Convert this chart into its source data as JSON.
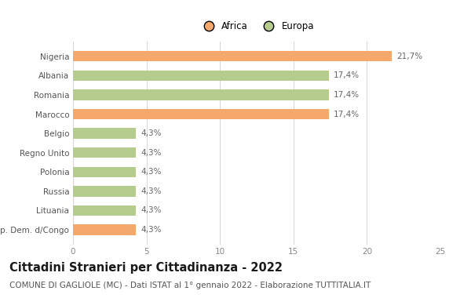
{
  "categories": [
    "Nigeria",
    "Albania",
    "Romania",
    "Marocco",
    "Belgio",
    "Regno Unito",
    "Polonia",
    "Russia",
    "Lituania",
    "Rep. Dem. d/Congo"
  ],
  "values": [
    21.7,
    17.4,
    17.4,
    17.4,
    4.3,
    4.3,
    4.3,
    4.3,
    4.3,
    4.3
  ],
  "labels": [
    "21,7%",
    "17,4%",
    "17,4%",
    "17,4%",
    "4,3%",
    "4,3%",
    "4,3%",
    "4,3%",
    "4,3%",
    "4,3%"
  ],
  "colors": [
    "#f4a86c",
    "#b5cc8e",
    "#b5cc8e",
    "#f4a86c",
    "#b5cc8e",
    "#b5cc8e",
    "#b5cc8e",
    "#b5cc8e",
    "#b5cc8e",
    "#f4a86c"
  ],
  "legend_labels": [
    "Africa",
    "Europa"
  ],
  "legend_colors": [
    "#f4a86c",
    "#b5cc8e"
  ],
  "title": "Cittadini Stranieri per Cittadinanza - 2022",
  "subtitle": "COMUNE DI GAGLIOLE (MC) - Dati ISTAT al 1° gennaio 2022 - Elaborazione TUTTITALIA.IT",
  "xlim": [
    0,
    25
  ],
  "xticks": [
    0,
    5,
    10,
    15,
    20,
    25
  ],
  "background_color": "#ffffff",
  "bar_height": 0.55,
  "title_fontsize": 10.5,
  "subtitle_fontsize": 7.5,
  "label_fontsize": 7.5,
  "tick_fontsize": 7.5,
  "legend_fontsize": 8.5
}
